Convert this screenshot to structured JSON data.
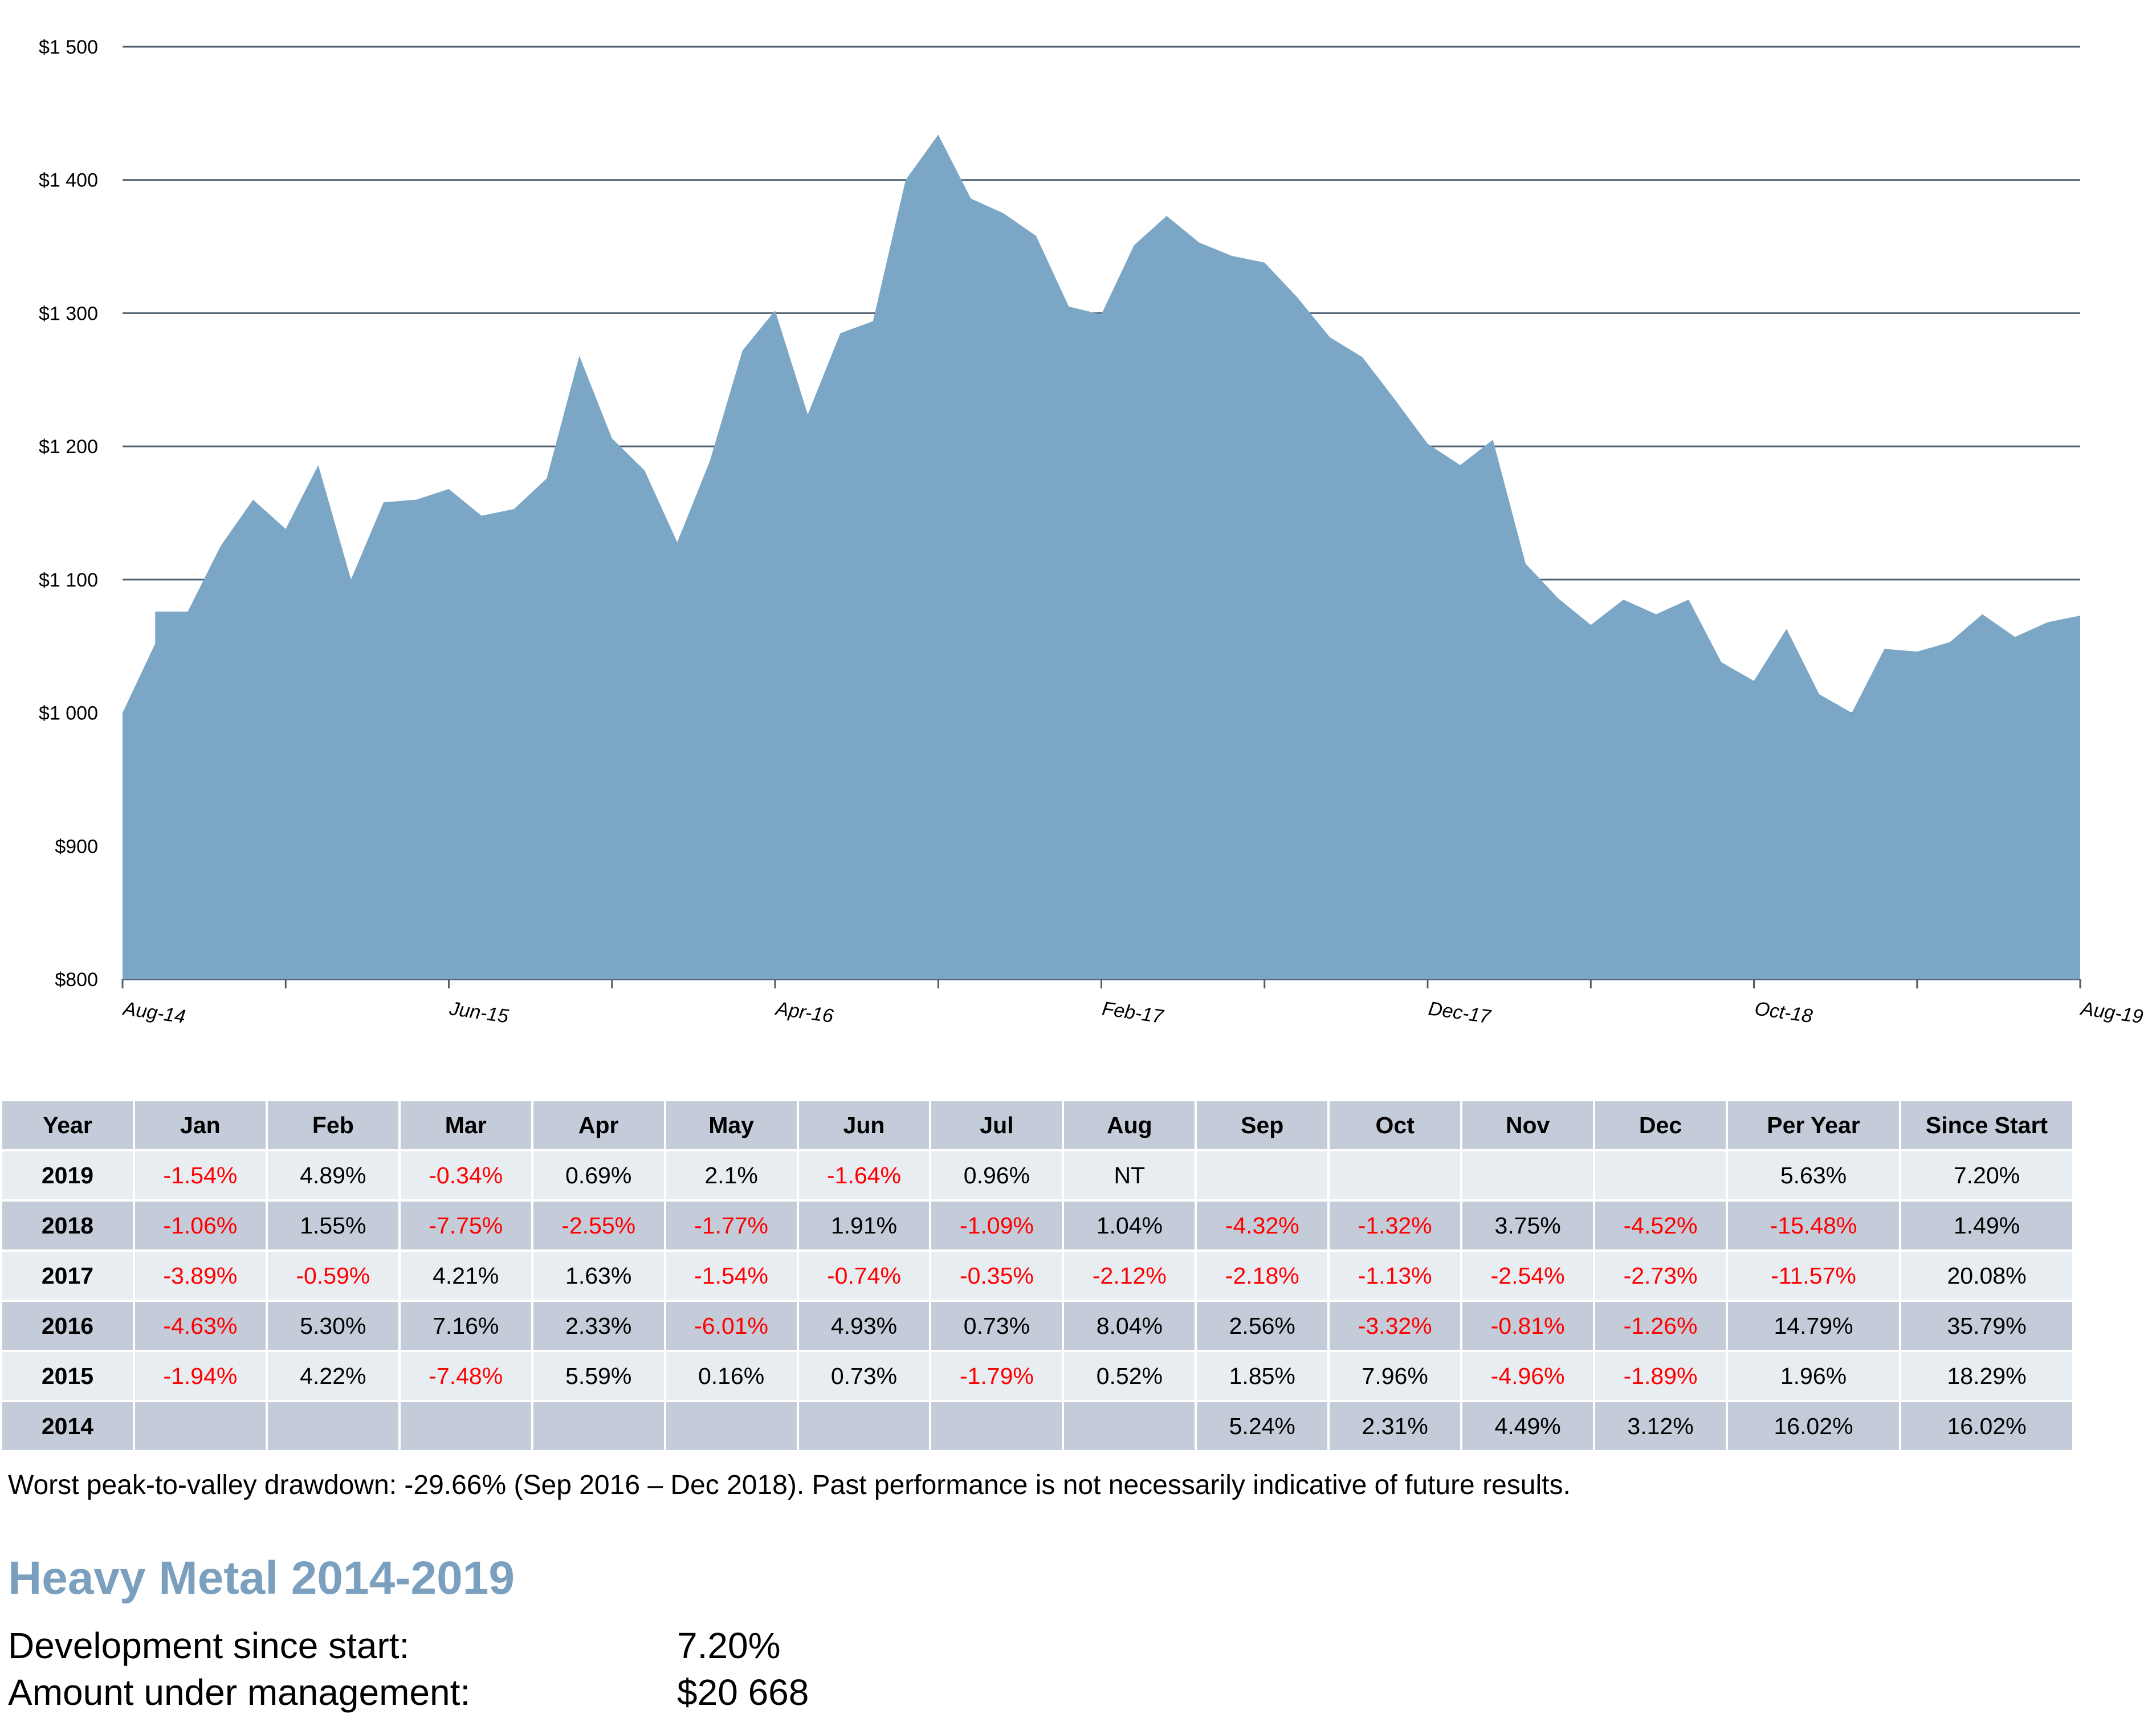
{
  "chart_data": {
    "type": "area",
    "fill_color": "#7ba6c6",
    "grid_color": "#4f5f6f",
    "ylim": [
      800,
      1500
    ],
    "yticks": [
      {
        "value": 1500,
        "label": "$1 500"
      },
      {
        "value": 1400,
        "label": "$1 400"
      },
      {
        "value": 1300,
        "label": "$1 300"
      },
      {
        "value": 1200,
        "label": "$1 200"
      },
      {
        "value": 1100,
        "label": "$1 100"
      },
      {
        "value": 1000,
        "label": "$1 000"
      },
      {
        "value": 900,
        "label": "$900"
      },
      {
        "value": 800,
        "label": "$800"
      }
    ],
    "xtick_labels": [
      {
        "index": 0,
        "label": "Aug-14"
      },
      {
        "index": 10,
        "label": "Jun-15"
      },
      {
        "index": 20,
        "label": "Apr-16"
      },
      {
        "index": 30,
        "label": "Feb-17"
      },
      {
        "index": 40,
        "label": "Dec-17"
      },
      {
        "index": 50,
        "label": "Oct-18"
      },
      {
        "index": 60,
        "label": "Aug-19"
      }
    ],
    "x": [
      "Aug-14",
      "Sep-14",
      "Oct-14",
      "Nov-14",
      "Dec-14",
      "Jan-15",
      "Feb-15",
      "Mar-15",
      "Apr-15",
      "May-15",
      "Jun-15",
      "Jul-15",
      "Aug-15",
      "Sep-15",
      "Oct-15",
      "Nov-15",
      "Dec-15",
      "Jan-16",
      "Feb-16",
      "Mar-16",
      "Apr-16",
      "May-16",
      "Jun-16",
      "Jul-16",
      "Aug-16",
      "Sep-16",
      "Oct-16",
      "Nov-16",
      "Dec-16",
      "Jan-17",
      "Feb-17",
      "Mar-17",
      "Apr-17",
      "May-17",
      "Jun-17",
      "Jul-17",
      "Aug-17",
      "Sep-17",
      "Oct-17",
      "Nov-17",
      "Dec-17",
      "Jan-18",
      "Feb-18",
      "Mar-18",
      "Apr-18",
      "May-18",
      "Jun-18",
      "Jul-18",
      "Aug-18",
      "Sep-18",
      "Oct-18",
      "Nov-18",
      "Dec-18",
      "Jan-19",
      "Feb-19",
      "Mar-19",
      "Apr-19",
      "May-19",
      "Jun-19",
      "Jul-19",
      "Aug-19"
    ],
    "values": [
      1000,
      1052,
      1076,
      1125,
      1160,
      1138,
      1186,
      1100,
      1158,
      1160,
      1168,
      1148,
      1153,
      1176,
      1268,
      1206,
      1182,
      1128,
      1189,
      1272,
      1302,
      1224,
      1285,
      1294,
      1400,
      1434,
      1386,
      1375,
      1358,
      1305,
      1299,
      1351,
      1373,
      1353,
      1343,
      1338,
      1312,
      1282,
      1267,
      1235,
      1202,
      1186,
      1205,
      1112,
      1086,
      1066,
      1085,
      1074,
      1085,
      1038,
      1024,
      1063,
      1014,
      1000,
      1048,
      1046,
      1053,
      1074,
      1057,
      1068,
      1073
    ],
    "extra_points": [
      {
        "after_index": 1,
        "value": 1076
      }
    ]
  },
  "table": {
    "headers": [
      "Year",
      "Jan",
      "Feb",
      "Mar",
      "Apr",
      "May",
      "Jun",
      "Jul",
      "Aug",
      "Sep",
      "Oct",
      "Nov",
      "Dec",
      "Per Year",
      "Since Start"
    ],
    "rows": [
      {
        "year": "2019",
        "cells": [
          "-1.54%",
          "4.89%",
          "-0.34%",
          "0.69%",
          "2.1%",
          "-1.64%",
          "0.96%",
          "NT",
          "",
          "",
          "",
          "",
          "5.63%",
          "7.20%"
        ]
      },
      {
        "year": "2018",
        "cells": [
          "-1.06%",
          "1.55%",
          "-7.75%",
          "-2.55%",
          "-1.77%",
          "1.91%",
          "-1.09%",
          "1.04%",
          "-4.32%",
          "-1.32%",
          "3.75%",
          "-4.52%",
          "-15.48%",
          "1.49%"
        ]
      },
      {
        "year": "2017",
        "cells": [
          "-3.89%",
          "-0.59%",
          "4.21%",
          "1.63%",
          "-1.54%",
          "-0.74%",
          "-0.35%",
          "-2.12%",
          "-2.18%",
          "-1.13%",
          "-2.54%",
          "-2.73%",
          "-11.57%",
          "20.08%"
        ]
      },
      {
        "year": "2016",
        "cells": [
          "-4.63%",
          "5.30%",
          "7.16%",
          "2.33%",
          "-6.01%",
          "4.93%",
          "0.73%",
          "8.04%",
          "2.56%",
          "-3.32%",
          "-0.81%",
          "-1.26%",
          "14.79%",
          "35.79%"
        ]
      },
      {
        "year": "2015",
        "cells": [
          "-1.94%",
          "4.22%",
          "-7.48%",
          "5.59%",
          "0.16%",
          "0.73%",
          "-1.79%",
          "0.52%",
          "1.85%",
          "7.96%",
          "-4.96%",
          "-1.89%",
          "1.96%",
          "18.29%"
        ]
      },
      {
        "year": "2014",
        "cells": [
          "",
          "",
          "",
          "",
          "",
          "",
          "",
          "",
          "5.24%",
          "2.31%",
          "4.49%",
          "3.12%",
          "16.02%",
          "16.02%"
        ]
      }
    ]
  },
  "footnote": "Worst peak-to-valley drawdown: -29.66%  (Sep 2016 – Dec 2018). Past performance is not necessarily indicative of future results.",
  "fund": {
    "title": "Heavy Metal 2014-2019",
    "development_label": "Development since start:",
    "development_value": "7.20%",
    "amount_label": "Amount under management:",
    "amount_value": "$20 668"
  }
}
